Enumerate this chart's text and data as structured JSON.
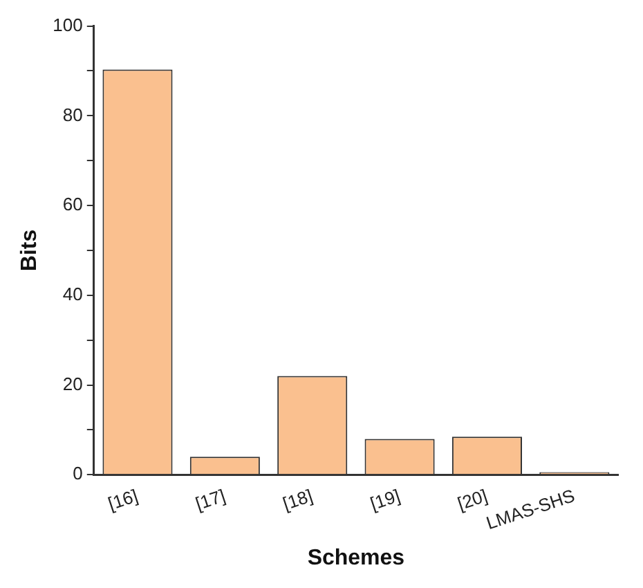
{
  "chart_data": {
    "type": "bar",
    "xlabel": "Schemes",
    "ylabel": "Bits",
    "categories": [
      "[16]",
      "[17]",
      "[18]",
      "[19]",
      "[20]",
      "LMAS-SHS"
    ],
    "values": [
      90.3,
      4,
      22,
      8,
      8.5,
      0.6
    ],
    "color": "#fac08f",
    "ylim": [
      0,
      100
    ],
    "yticks": [
      0,
      {
        "value": 10,
        "label": null
      },
      20,
      {
        "value": 30,
        "label": null
      },
      40,
      {
        "value": 50,
        "label": null
      },
      60,
      {
        "value": 70,
        "label": null
      },
      80,
      {
        "value": 90,
        "label": null
      },
      100
    ],
    "grid": false,
    "legend": false
  }
}
